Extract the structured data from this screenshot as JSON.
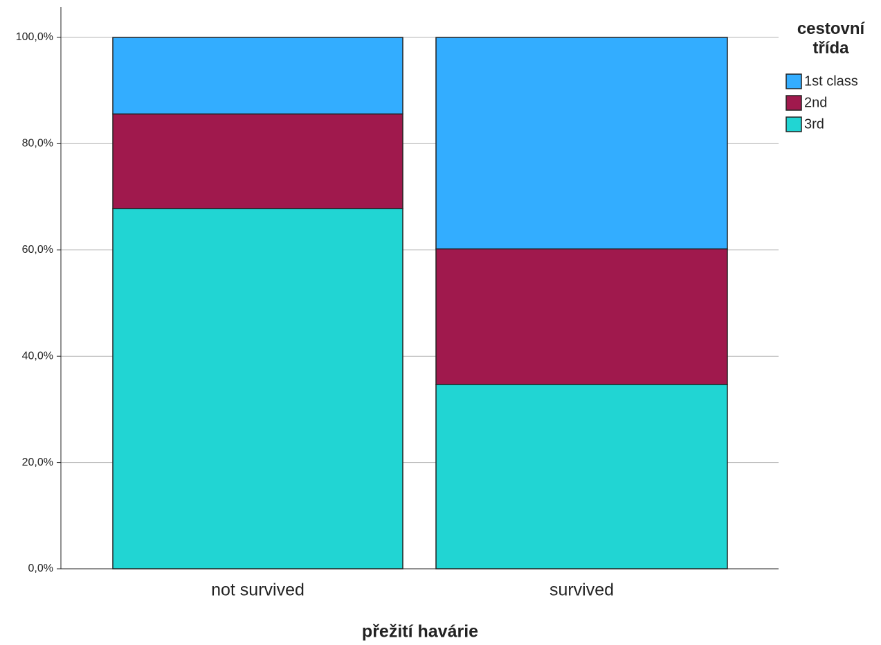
{
  "chart_data": {
    "type": "stacked_bar",
    "x_label": "přežití havárie",
    "legend_title": "cestovní třída",
    "categories": [
      "not survived",
      "survived"
    ],
    "series": [
      {
        "name": "1st class",
        "color": "#33adff",
        "values": [
          14.4,
          39.8
        ]
      },
      {
        "name": "2nd",
        "color": "#a0194d",
        "values": [
          17.8,
          25.5
        ]
      },
      {
        "name": "3rd",
        "color": "#21d5d3",
        "values": [
          67.8,
          34.7
        ]
      }
    ],
    "ylim": [
      0,
      100
    ],
    "yticks": [
      {
        "value": 0,
        "label": "0,0%"
      },
      {
        "value": 20,
        "label": "20,0%"
      },
      {
        "value": 40,
        "label": "40,0%"
      },
      {
        "value": 60,
        "label": "60,0%"
      },
      {
        "value": 80,
        "label": "80,0%"
      },
      {
        "value": 100,
        "label": "100,0%"
      }
    ],
    "grid": true,
    "legend": "right"
  }
}
